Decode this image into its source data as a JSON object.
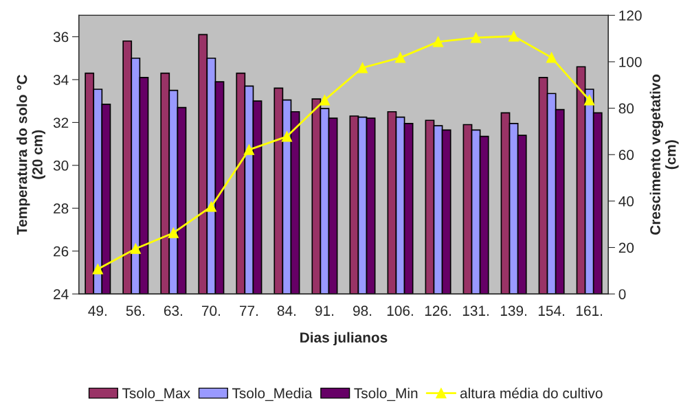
{
  "chart_data": {
    "type": "bar",
    "xlabel": "Dias julianos",
    "ylabel": "Temperatura do solo °C\n(20 cm)",
    "y2label": "Crescimento vegetativo\n(cm)",
    "categories": [
      "49.",
      "56.",
      "63.",
      "70.",
      "77.",
      "84.",
      "91.",
      "98.",
      "106.",
      "126.",
      "131.",
      "139.",
      "154.",
      "161."
    ],
    "series": [
      {
        "name": "Tsolo_Max",
        "color": "#993366",
        "values": [
          34.3,
          35.8,
          34.3,
          36.1,
          34.3,
          33.6,
          33.1,
          32.3,
          32.5,
          32.1,
          31.9,
          32.45,
          34.1,
          34.6
        ]
      },
      {
        "name": "Tsolo_Media",
        "color": "#9999ff",
        "values": [
          33.55,
          35.0,
          33.5,
          35.0,
          33.7,
          33.05,
          32.65,
          32.25,
          32.25,
          31.85,
          31.65,
          31.95,
          33.35,
          33.55
        ]
      },
      {
        "name": "Tsolo_Min",
        "color": "#660066",
        "values": [
          32.85,
          34.1,
          32.7,
          33.9,
          33.0,
          32.5,
          32.2,
          32.2,
          31.95,
          31.65,
          31.35,
          31.4,
          32.6,
          32.45
        ]
      },
      {
        "name": "altura média do cultivo",
        "color": "#ffff00",
        "type": "line",
        "axis": "y2",
        "marker": "triangle",
        "values": [
          10.7,
          19.5,
          26.3,
          37.6,
          62.1,
          67.8,
          83.5,
          97.4,
          101.8,
          108.6,
          110.4,
          111,
          101.8,
          83.5
        ]
      }
    ],
    "ylim": [
      24,
      37
    ],
    "yticks": [
      24,
      26,
      28,
      30,
      32,
      34,
      36
    ],
    "y2lim": [
      0,
      120
    ],
    "y2ticks": [
      0,
      20,
      40,
      60,
      80,
      100,
      120
    ],
    "grid": false,
    "legend": "bottom"
  }
}
